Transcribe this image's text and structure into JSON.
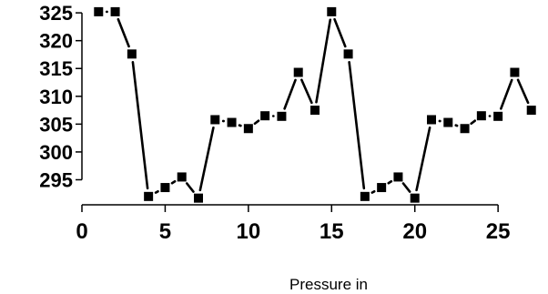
{
  "chart_data": {
    "type": "line",
    "title": "",
    "xlabel": "Pressure in",
    "ylabel": "",
    "xlim": [
      0,
      28
    ],
    "ylim": [
      290.5,
      326
    ],
    "x_ticks": [
      0,
      5,
      10,
      15,
      20,
      25
    ],
    "x_tick_labels": [
      "0",
      "5",
      "10",
      "15",
      "20",
      "25"
    ],
    "y_ticks": [
      295,
      300,
      305,
      310,
      315,
      320,
      325
    ],
    "y_tick_labels": [
      "295",
      "300",
      "305",
      "310",
      "315",
      "320",
      "325"
    ],
    "grid": false,
    "legend": "none",
    "line_color": "#000000",
    "marker": "square",
    "series": [
      {
        "x": [
          1,
          2,
          3,
          4,
          5,
          6,
          7,
          8,
          9,
          10,
          11,
          12,
          13,
          14,
          15,
          16,
          17,
          18,
          19,
          20,
          21,
          22,
          23,
          24,
          25,
          26,
          27
        ],
        "values": [
          325.2,
          325.2,
          317.6,
          292.0,
          293.6,
          295.5,
          291.7,
          305.8,
          305.3,
          304.2,
          306.5,
          306.4,
          314.3,
          307.5,
          325.2,
          317.6,
          292.0,
          293.6,
          295.5,
          291.7,
          305.8,
          305.3,
          304.2,
          306.5,
          306.4,
          314.3,
          307.5
        ]
      }
    ]
  }
}
